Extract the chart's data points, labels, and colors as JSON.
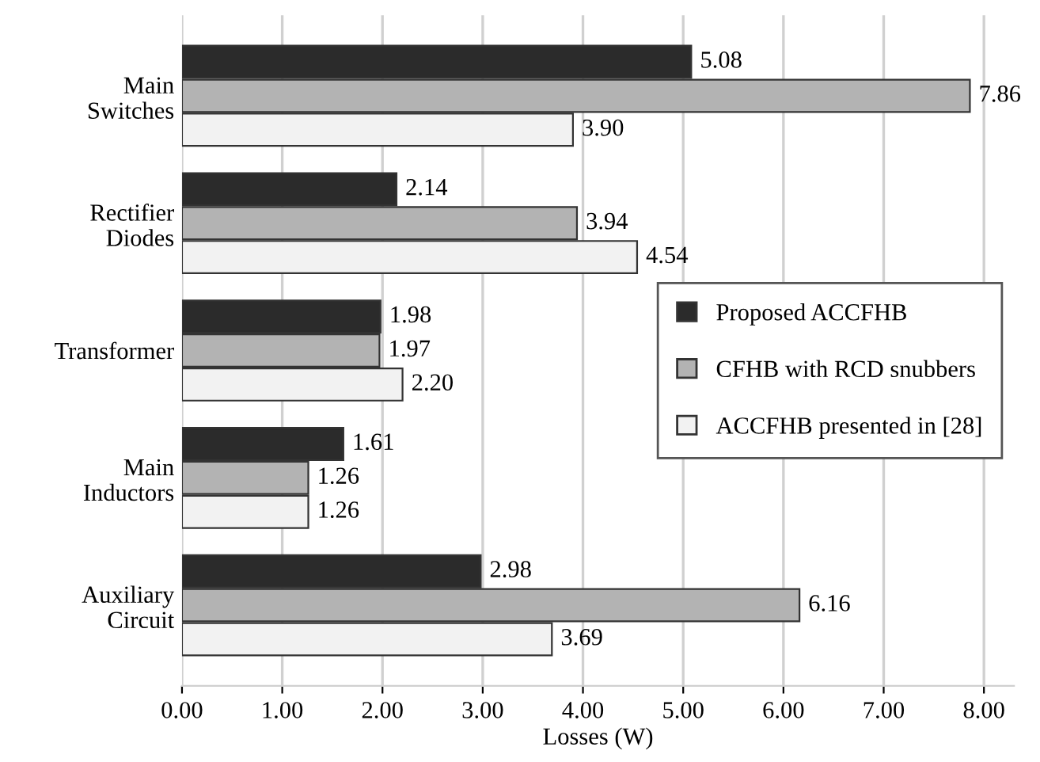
{
  "chart_data": {
    "type": "bar",
    "orientation": "horizontal",
    "xlabel": "Losses (W)",
    "categories": [
      "Main\nSwitches",
      "Rectifier\nDiodes",
      "Transformer",
      "Main\nInductors",
      "Auxiliary\nCircuit"
    ],
    "series": [
      {
        "name": "Proposed ACCFHB",
        "color": "#2b2b2b",
        "values": [
          5.08,
          2.14,
          1.98,
          1.61,
          2.98
        ],
        "value_labels": [
          "5.08",
          "2.14",
          "1.98",
          "1.61",
          "2.98"
        ]
      },
      {
        "name": "CFHB with RCD snubbers",
        "color": "#b3b3b3",
        "values": [
          7.86,
          3.94,
          1.97,
          1.26,
          6.16
        ],
        "value_labels": [
          "7.86",
          "3.94",
          "1.97",
          "1.26",
          "6.16"
        ]
      },
      {
        "name": "ACCFHB presented in [28]",
        "color": "#f2f2f2",
        "values": [
          3.9,
          4.54,
          2.2,
          1.26,
          3.69
        ],
        "value_labels": [
          "3.90",
          "4.54",
          "2.20",
          "1.26",
          "3.69"
        ]
      }
    ],
    "xlim": [
      0,
      8.3
    ],
    "xticks": [
      {
        "value": 0,
        "label": "0.00"
      },
      {
        "value": 1,
        "label": "1.00"
      },
      {
        "value": 2,
        "label": "2.00"
      },
      {
        "value": 3,
        "label": "3.00"
      },
      {
        "value": 4,
        "label": "4.00"
      },
      {
        "value": 5,
        "label": "5.00"
      },
      {
        "value": 6,
        "label": "6.00"
      },
      {
        "value": 7,
        "label": "7.00"
      },
      {
        "value": 8,
        "label": "8.00"
      }
    ],
    "grid": "x",
    "legend": "right"
  }
}
